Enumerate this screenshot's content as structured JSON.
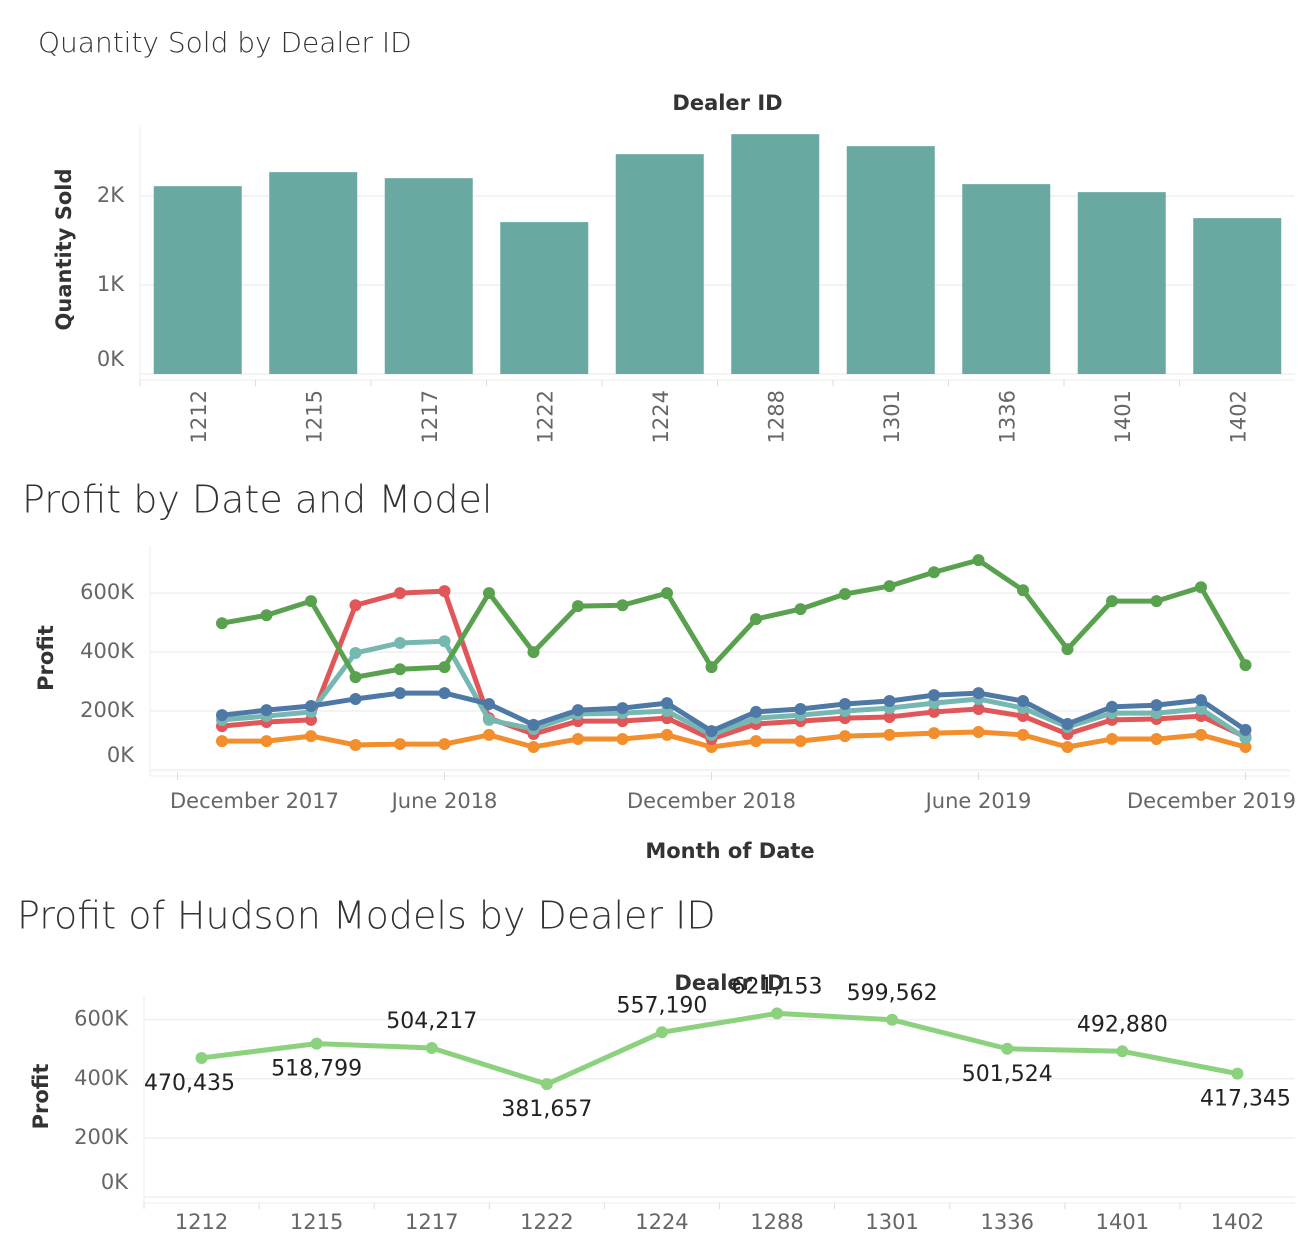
{
  "chart_data": [
    {
      "type": "bar",
      "title": "Quantity Sold by Dealer ID",
      "x_label": "Dealer ID",
      "y_label": "Quantity Sold",
      "categories": [
        "1212",
        "1215",
        "1217",
        "1222",
        "1224",
        "1288",
        "1301",
        "1336",
        "1401",
        "1402"
      ],
      "values": [
        2112,
        2270,
        2202,
        1708,
        2472,
        2697,
        2562,
        2135,
        2045,
        1753
      ],
      "color": "#6aa9a2",
      "ylim": [
        0,
        2800
      ],
      "yticks": [
        {
          "value": 0,
          "label": "0K"
        },
        {
          "value": 1000,
          "label": "1K"
        },
        {
          "value": 2000,
          "label": "2K"
        }
      ],
      "grid": true
    },
    {
      "type": "line",
      "title": "Profit by Date and Model",
      "x_label": "Month of Date",
      "y_label": "Profit",
      "x": [
        "2018-01",
        "2018-02",
        "2018-03",
        "2018-04",
        "2018-05",
        "2018-06",
        "2018-07",
        "2018-08",
        "2018-09",
        "2018-10",
        "2018-11",
        "2018-12",
        "2019-01",
        "2019-02",
        "2019-03",
        "2019-04",
        "2019-05",
        "2019-06",
        "2019-07",
        "2019-08",
        "2019-09",
        "2019-10",
        "2019-11",
        "2019-12"
      ],
      "xlim": [
        "2017-11",
        "2020-01"
      ],
      "xticks": [
        {
          "value": "2017-12",
          "label": "December 2017"
        },
        {
          "value": "2018-06",
          "label": "June 2018"
        },
        {
          "value": "2018-12",
          "label": "December 2018"
        },
        {
          "value": "2019-06",
          "label": "June 2019"
        },
        {
          "value": "2019-12",
          "label": "December 2019"
        }
      ],
      "ylim": [
        0,
        760000
      ],
      "yticks": [
        {
          "value": 0,
          "label": "0K"
        },
        {
          "value": 200000,
          "label": "200K"
        },
        {
          "value": 400000,
          "label": "400K"
        },
        {
          "value": 600000,
          "label": "600K"
        }
      ],
      "grid": true,
      "series": [
        {
          "color": "#f28e2b",
          "values": [
            98000,
            98000,
            115000,
            85000,
            88000,
            88000,
            119000,
            78000,
            105000,
            105000,
            119000,
            78000,
            98000,
            98000,
            115000,
            119000,
            125000,
            129000,
            119000,
            78000,
            105000,
            105000,
            119000,
            78000
          ]
        },
        {
          "color": "#e15759",
          "values": [
            149000,
            163000,
            170000,
            559000,
            600000,
            607000,
            176000,
            122000,
            166000,
            166000,
            176000,
            105000,
            156000,
            166000,
            176000,
            180000,
            197000,
            207000,
            183000,
            122000,
            170000,
            173000,
            183000,
            112000
          ]
        },
        {
          "color": "#76b7b2",
          "values": [
            170000,
            183000,
            197000,
            397000,
            431000,
            437000,
            170000,
            139000,
            190000,
            193000,
            200000,
            119000,
            176000,
            186000,
            200000,
            210000,
            227000,
            241000,
            210000,
            146000,
            193000,
            193000,
            207000,
            108000
          ]
        },
        {
          "color": "#4e79a7",
          "values": [
            186000,
            203000,
            217000,
            241000,
            261000,
            261000,
            224000,
            153000,
            203000,
            210000,
            227000,
            132000,
            197000,
            207000,
            224000,
            234000,
            254000,
            261000,
            234000,
            156000,
            214000,
            220000,
            237000,
            136000
          ]
        },
        {
          "color": "#59a14f",
          "values": [
            498000,
            525000,
            573000,
            315000,
            342000,
            349000,
            600000,
            400000,
            556000,
            559000,
            600000,
            349000,
            512000,
            546000,
            597000,
            624000,
            671000,
            712000,
            610000,
            410000,
            573000,
            573000,
            620000,
            356000
          ]
        }
      ]
    },
    {
      "type": "line",
      "title": "Profit of Hudson Models by Dealer ID",
      "x_label": "Dealer ID",
      "y_label": "Profit",
      "categories": [
        "1212",
        "1215",
        "1217",
        "1222",
        "1224",
        "1288",
        "1301",
        "1336",
        "1401",
        "1402"
      ],
      "values": [
        470435,
        518799,
        504217,
        381657,
        557190,
        621153,
        599562,
        501524,
        492880,
        417345
      ],
      "value_labels": [
        "470,435",
        "518,799",
        "504,217",
        "381,657",
        "557,190",
        "621,153",
        "599,562",
        "501,524",
        "492,880",
        "417,345"
      ],
      "color": "#8cd17d",
      "ylim": [
        0,
        680000
      ],
      "yticks": [
        {
          "value": 0,
          "label": "0K"
        },
        {
          "value": 200000,
          "label": "200K"
        },
        {
          "value": 400000,
          "label": "400K"
        },
        {
          "value": 600000,
          "label": "600K"
        }
      ],
      "grid": true
    }
  ]
}
